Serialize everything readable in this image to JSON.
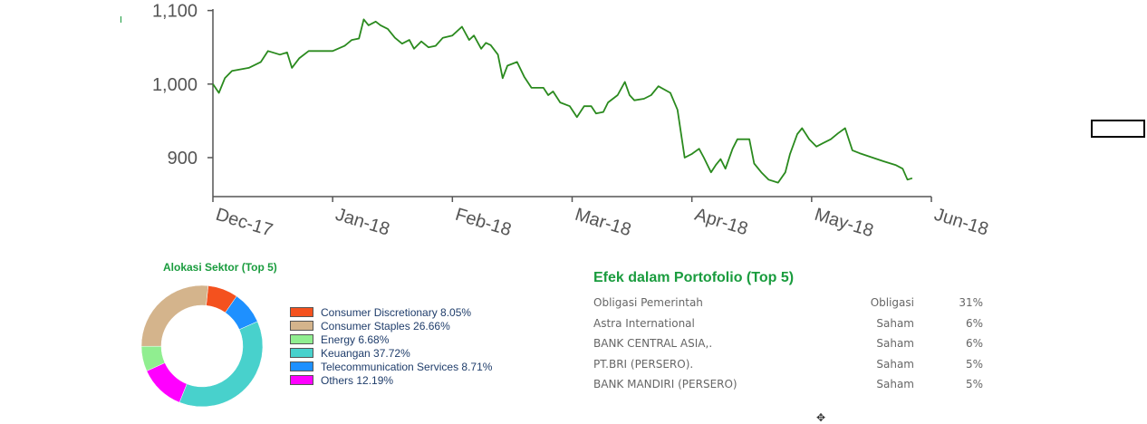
{
  "chart_data": [
    {
      "type": "line",
      "title": "",
      "xlabel": "",
      "ylabel": "",
      "x_ticks": [
        "Dec-17",
        "Jan-18",
        "Feb-18",
        "Mar-18",
        "Apr-18",
        "May-18",
        "Jun-18"
      ],
      "y_ticks": [
        "1,100",
        "1,000",
        "900"
      ],
      "y_tick_values": [
        1100,
        1000,
        900
      ],
      "ylim": [
        847,
        1102
      ],
      "grid": false,
      "line_color": "#2a8a1e",
      "series": [
        {
          "values": [
            [
              0.0,
              1000
            ],
            [
              0.05,
              988
            ],
            [
              0.1,
              1008
            ],
            [
              0.16,
              1018
            ],
            [
              0.3,
              1022
            ],
            [
              0.4,
              1030
            ],
            [
              0.46,
              1045
            ],
            [
              0.56,
              1040
            ],
            [
              0.62,
              1043
            ],
            [
              0.66,
              1022
            ],
            [
              0.72,
              1035
            ],
            [
              0.8,
              1045
            ],
            [
              0.9,
              1045
            ],
            [
              1.0,
              1045
            ],
            [
              1.1,
              1052
            ],
            [
              1.16,
              1060
            ],
            [
              1.22,
              1062
            ],
            [
              1.26,
              1088
            ],
            [
              1.3,
              1080
            ],
            [
              1.36,
              1085
            ],
            [
              1.4,
              1080
            ],
            [
              1.46,
              1075
            ],
            [
              1.52,
              1063
            ],
            [
              1.58,
              1055
            ],
            [
              1.64,
              1060
            ],
            [
              1.68,
              1048
            ],
            [
              1.74,
              1058
            ],
            [
              1.8,
              1050
            ],
            [
              1.86,
              1052
            ],
            [
              1.92,
              1063
            ],
            [
              2.0,
              1066
            ],
            [
              2.08,
              1078
            ],
            [
              2.14,
              1060
            ],
            [
              2.18,
              1066
            ],
            [
              2.24,
              1048
            ],
            [
              2.28,
              1056
            ],
            [
              2.32,
              1053
            ],
            [
              2.38,
              1040
            ],
            [
              2.42,
              1008
            ],
            [
              2.46,
              1025
            ],
            [
              2.54,
              1030
            ],
            [
              2.6,
              1010
            ],
            [
              2.66,
              995
            ],
            [
              2.76,
              995
            ],
            [
              2.8,
              985
            ],
            [
              2.84,
              990
            ],
            [
              2.9,
              975
            ],
            [
              2.98,
              970
            ],
            [
              3.04,
              955
            ],
            [
              3.1,
              970
            ],
            [
              3.16,
              970
            ],
            [
              3.2,
              960
            ],
            [
              3.26,
              962
            ],
            [
              3.3,
              975
            ],
            [
              3.38,
              985
            ],
            [
              3.44,
              1003
            ],
            [
              3.48,
              985
            ],
            [
              3.52,
              978
            ],
            [
              3.6,
              980
            ],
            [
              3.66,
              985
            ],
            [
              3.72,
              997
            ],
            [
              3.82,
              988
            ],
            [
              3.88,
              965
            ],
            [
              3.94,
              900
            ],
            [
              4.0,
              905
            ],
            [
              4.06,
              912
            ],
            [
              4.1,
              900
            ],
            [
              4.16,
              880
            ],
            [
              4.2,
              890
            ],
            [
              4.24,
              898
            ],
            [
              4.28,
              885
            ],
            [
              4.34,
              912
            ],
            [
              4.38,
              925
            ],
            [
              4.48,
              925
            ],
            [
              4.52,
              892
            ],
            [
              4.58,
              880
            ],
            [
              4.64,
              870
            ],
            [
              4.72,
              866
            ],
            [
              4.78,
              880
            ],
            [
              4.82,
              905
            ],
            [
              4.88,
              932
            ],
            [
              4.92,
              940
            ],
            [
              4.98,
              925
            ],
            [
              5.04,
              915
            ],
            [
              5.1,
              920
            ],
            [
              5.16,
              925
            ],
            [
              5.22,
              933
            ],
            [
              5.28,
              940
            ],
            [
              5.34,
              910
            ],
            [
              5.4,
              906
            ],
            [
              5.6,
              895
            ],
            [
              5.7,
              890
            ],
            [
              5.76,
              885
            ],
            [
              5.8,
              870
            ],
            [
              5.84,
              872
            ]
          ]
        }
      ]
    },
    {
      "type": "pie",
      "title": "Alokasi Sektor (Top 5)",
      "donut": true,
      "legend_position": "right",
      "slices": [
        {
          "label": "Consumer Discretionary 8.05%",
          "value": 8.05,
          "color": "#f4511e"
        },
        {
          "label": "Consumer Staples 26.66%",
          "value": 26.66,
          "color": "#d4b48c"
        },
        {
          "label": "Energy 6.68%",
          "value": 6.68,
          "color": "#90ee90"
        },
        {
          "label": "Keuangan 37.72%",
          "value": 37.72,
          "color": "#48d1cc"
        },
        {
          "label": "Telecommunication Services 8.71%",
          "value": 8.71,
          "color": "#1e90ff"
        },
        {
          "label": "Others 12.19%",
          "value": 12.19,
          "color": "#ff00ff"
        }
      ],
      "draw_order": [
        0,
        4,
        3,
        5,
        2,
        1
      ]
    },
    {
      "type": "table",
      "title": "Efek dalam Portofolio (Top 5)",
      "rows": [
        {
          "name": "Obligasi Pemerintah",
          "type": "Obligasi",
          "pct": "31%"
        },
        {
          "name": "Astra International",
          "type": "Saham",
          "pct": "6%"
        },
        {
          "name": "BANK CENTRAL ASIA,.",
          "type": "Saham",
          "pct": "6%"
        },
        {
          "name": "PT.BRI (PERSERO).",
          "type": "Saham",
          "pct": "5%"
        },
        {
          "name": "BANK MANDIRI (PERSERO)",
          "type": "Saham",
          "pct": "5%"
        }
      ]
    }
  ]
}
